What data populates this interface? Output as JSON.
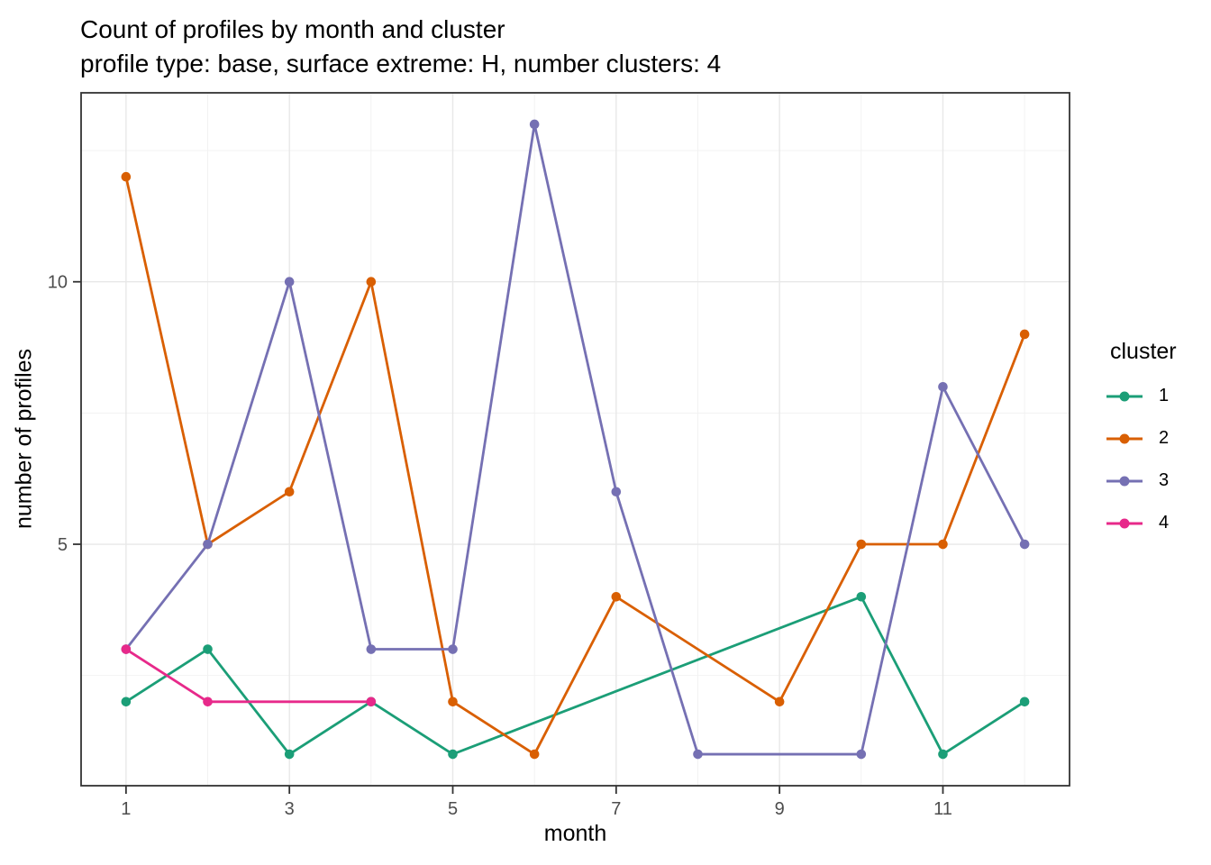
{
  "chart_data": {
    "type": "line",
    "title": "Count of profiles by month and cluster",
    "subtitle": "profile type: base, surface extreme: H, number clusters: 4",
    "xlabel": "month",
    "ylabel": "number of profiles",
    "legend_title": "cluster",
    "legend_position": "right",
    "grid": true,
    "x_ticks": [
      1,
      3,
      5,
      7,
      9,
      11
    ],
    "x_minor_ticks": [
      2,
      4,
      6,
      8,
      10,
      12
    ],
    "y_ticks": [
      5,
      10
    ],
    "y_minor_ticks": [
      2.5,
      7.5,
      12.5
    ],
    "xlim": [
      0.45,
      12.55
    ],
    "ylim": [
      0.4,
      13.6
    ],
    "series": [
      {
        "name": "1",
        "color": "#1B9E77",
        "x": [
          1,
          2,
          3,
          4,
          5,
          10,
          11,
          12
        ],
        "y": [
          2,
          3,
          1,
          2,
          1,
          4,
          1,
          2
        ]
      },
      {
        "name": "2",
        "color": "#D95F02",
        "x": [
          1,
          2,
          3,
          4,
          5,
          6,
          7,
          9,
          10,
          11,
          12
        ],
        "y": [
          12,
          5,
          6,
          10,
          2,
          1,
          4,
          2,
          5,
          5,
          9
        ]
      },
      {
        "name": "3",
        "color": "#7570B3",
        "x": [
          1,
          2,
          3,
          4,
          5,
          6,
          7,
          8,
          10,
          11,
          12
        ],
        "y": [
          3,
          5,
          10,
          3,
          3,
          13,
          6,
          1,
          1,
          8,
          5
        ]
      },
      {
        "name": "4",
        "color": "#E7298A",
        "x": [
          1,
          2,
          4
        ],
        "y": [
          3,
          2,
          2
        ]
      }
    ],
    "panel_border_color": "#333333",
    "grid_major_color": "#E8E8E8",
    "grid_minor_color": "#F1F1F1",
    "tick_color": "#333333",
    "tick_label_color": "#4D4D4D",
    "text_color": "#000000",
    "background_color": "#FFFFFF"
  }
}
